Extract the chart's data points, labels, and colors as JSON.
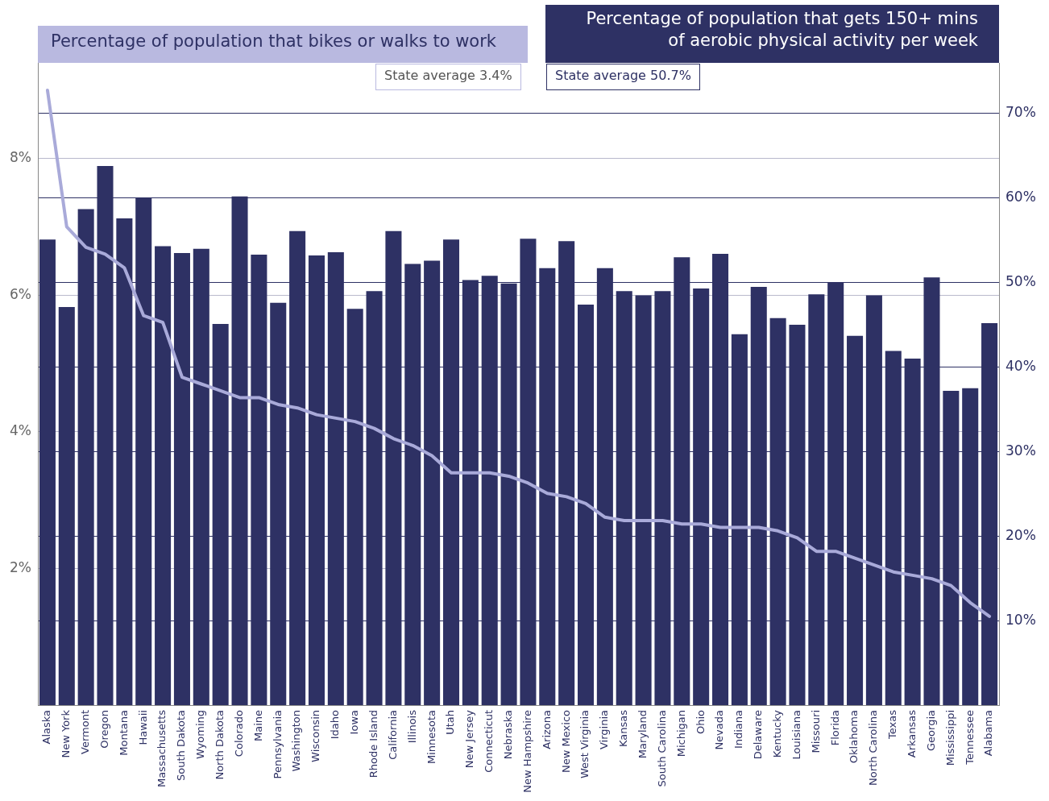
{
  "chart_data": {
    "type": "bar",
    "ylabel": "Percentage of population that bikes or walks to work",
    "y2label": "Percentage of population that gets 150+ mins of aerobic physical activity per week",
    "annotations": [
      "State average 3.4%",
      "State average 50.7%"
    ],
    "categories": [
      "Alaska",
      "New York",
      "Vermont",
      "Oregon",
      "Montana",
      "Hawaii",
      "Massachusetts",
      "South Dakota",
      "Wyoming",
      "North Dakota",
      "Colorado",
      "Maine",
      "Pennsylvania",
      "Washington",
      "Wisconsin",
      "Idaho",
      "Iowa",
      "Rhode Island",
      "California",
      "Illinois",
      "Minnesota",
      "Utah",
      "New Jersey",
      "Connecticut",
      "Nebraska",
      "New Hampshire",
      "Arizona",
      "New Mexico",
      "West Virginia",
      "Virginia",
      "Kansas",
      "Maryland",
      "South Carolina",
      "Michigan",
      "Ohio",
      "Nevada",
      "Indiana",
      "Delaware",
      "Kentucky",
      "Louisiana",
      "Missouri",
      "Florida",
      "Oklahoma",
      "North Carolina",
      "Texas",
      "Arkansas",
      "Georgia",
      "Mississippi",
      "Tennessee",
      "Alabama"
    ],
    "series": [
      {
        "axis": "y2",
        "color": "#2e3164",
        "values": [
          55.1,
          47.1,
          58.7,
          63.8,
          57.6,
          60.0,
          54.3,
          53.5,
          54.0,
          45.1,
          60.2,
          53.3,
          47.6,
          56.1,
          53.2,
          53.6,
          46.9,
          49.0,
          56.1,
          52.2,
          52.6,
          55.1,
          50.3,
          50.8,
          49.9,
          55.2,
          51.7,
          54.9,
          47.4,
          51.7,
          49.0,
          48.5,
          49.0,
          53.0,
          49.3,
          53.4,
          43.9,
          49.5,
          45.8,
          45.0,
          48.6,
          50.0,
          43.7,
          48.5,
          41.9,
          41.0,
          50.6,
          37.2,
          37.5,
          45.2
        ]
      },
      {
        "type": "line",
        "axis": "y",
        "color": "#a9aad9",
        "values": [
          9.0,
          7.0,
          6.7,
          6.6,
          6.4,
          5.7,
          5.6,
          4.8,
          4.7,
          4.6,
          4.5,
          4.5,
          4.4,
          4.35,
          4.25,
          4.2,
          4.15,
          4.05,
          3.9,
          3.8,
          3.65,
          3.4,
          3.4,
          3.4,
          3.35,
          3.25,
          3.1,
          3.05,
          2.95,
          2.75,
          2.7,
          2.7,
          2.7,
          2.65,
          2.65,
          2.6,
          2.6,
          2.6,
          2.55,
          2.45,
          2.25,
          2.25,
          2.15,
          2.05,
          1.95,
          1.9,
          1.85,
          1.75,
          1.5,
          1.3
        ]
      }
    ],
    "ylim": [
      0,
      9.4
    ],
    "yticks": [
      {
        "value": 2,
        "label": "2%"
      },
      {
        "value": 4,
        "label": "4%"
      },
      {
        "value": 6,
        "label": "6%"
      },
      {
        "value": 8,
        "label": "8%"
      }
    ],
    "y2lim": [
      0,
      76
    ],
    "y2ticks": [
      {
        "value": 10,
        "label": "10%"
      },
      {
        "value": 20,
        "label": "20%"
      },
      {
        "value": 30,
        "label": "30%"
      },
      {
        "value": 40,
        "label": "40%"
      },
      {
        "value": 50,
        "label": "50%"
      },
      {
        "value": 60,
        "label": "60%"
      },
      {
        "value": 70,
        "label": "70%"
      }
    ],
    "grid": "y",
    "marker": "none"
  }
}
